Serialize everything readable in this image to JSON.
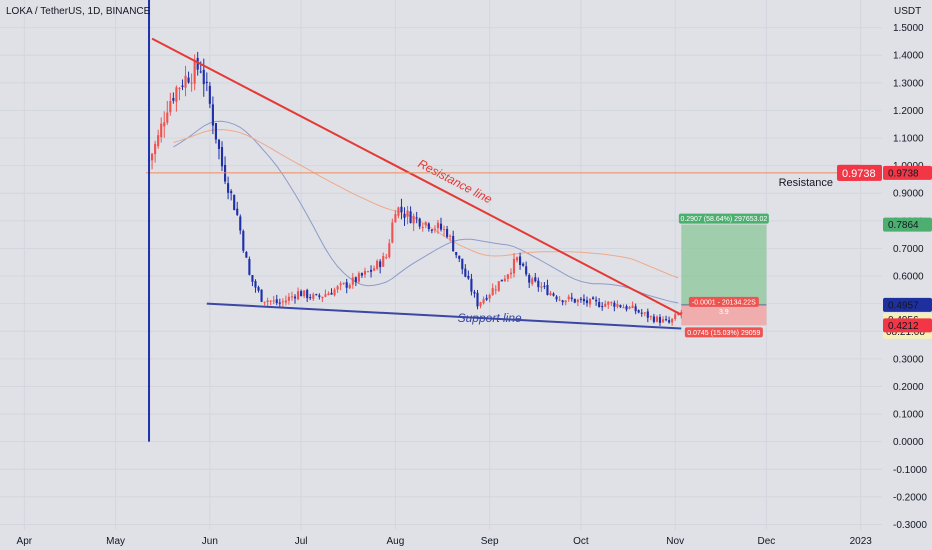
{
  "header": {
    "title": "LOKA / TetherUS, 1D, BINANCE"
  },
  "price_axis": {
    "unit": "USDT"
  },
  "colors": {
    "background": "#dfe1e7",
    "up": "#ef5350",
    "down": "#1e2fa8",
    "resistance_trend": "#e53935",
    "support_trend": "#3a47a3",
    "resistance_level": "#f08a5d",
    "target_zone": "#8bc598",
    "stop_zone": "#f2a3a3",
    "ma_fast": "#8f9bc9",
    "ma_slow": "#f0a98a"
  },
  "chart_data": {
    "type": "candlestick",
    "title": "LOKA / TetherUS, 1D, BINANCE",
    "ylabel": "USDT",
    "ylim": [
      -0.32,
      1.6
    ],
    "y_ticks": [
      "1.5000",
      "1.4000",
      "1.3000",
      "1.2000",
      "1.1000",
      "1.0000",
      "0.9000",
      "0.8000",
      "0.7000",
      "0.6000",
      "0.5000",
      "0.4000",
      "0.3000",
      "0.2000",
      "0.1000",
      "0.0000",
      "-0.1000",
      "-0.2000",
      "-0.3000"
    ],
    "x_ticks": [
      "Apr",
      "May",
      "Jun",
      "Jul",
      "Aug",
      "Sep",
      "Oct",
      "Nov",
      "Dec",
      "2023"
    ],
    "x_tick_dates": [
      "2022-04-01",
      "2022-05-01",
      "2022-06-01",
      "2022-07-01",
      "2022-08-01",
      "2022-09-01",
      "2022-10-01",
      "2022-11-01",
      "2022-12-01",
      "2023-01-01"
    ],
    "price_path": {
      "dates": [
        "2022-05-12",
        "2022-05-15",
        "2022-05-18",
        "2022-05-21",
        "2022-05-25",
        "2022-05-29",
        "2022-06-01",
        "2022-06-05",
        "2022-06-10",
        "2022-06-14",
        "2022-06-18",
        "2022-06-24",
        "2022-06-30",
        "2022-07-06",
        "2022-07-12",
        "2022-07-18",
        "2022-07-24",
        "2022-07-29",
        "2022-08-01",
        "2022-08-05",
        "2022-08-12",
        "2022-08-18",
        "2022-08-24",
        "2022-08-28",
        "2022-09-01",
        "2022-09-06",
        "2022-09-10",
        "2022-09-14",
        "2022-09-18",
        "2022-09-24",
        "2022-09-30",
        "2022-10-06",
        "2022-10-12",
        "2022-10-18",
        "2022-10-24",
        "2022-10-30",
        "2022-11-03"
      ],
      "close": [
        1.02,
        1.1,
        1.22,
        1.28,
        1.33,
        1.36,
        1.22,
        1.0,
        0.82,
        0.6,
        0.52,
        0.5,
        0.54,
        0.52,
        0.55,
        0.58,
        0.62,
        0.67,
        0.85,
        0.82,
        0.79,
        0.76,
        0.6,
        0.5,
        0.54,
        0.6,
        0.66,
        0.58,
        0.56,
        0.52,
        0.51,
        0.5,
        0.5,
        0.48,
        0.45,
        0.43,
        0.47
      ]
    },
    "resistance_trendline": {
      "label": "Resistance line",
      "from": [
        "2022-05-13",
        1.46
      ],
      "to": [
        "2022-11-03",
        0.46
      ]
    },
    "support_trendline": {
      "label": "Support line",
      "from": [
        "2022-05-31",
        0.5
      ],
      "to": [
        "2022-11-03",
        0.41
      ]
    },
    "resistance_level": {
      "label": "Resistance",
      "price": 0.9738,
      "price_label": "0.9738"
    },
    "position": {
      "entry": 0.4957,
      "target": 0.7864,
      "stop": 0.4212,
      "start": "2022-11-03",
      "end": "2022-12-01",
      "target_label": "0.2907 (58.64%) 297653.02",
      "entry_label_1": "-0.0001 - 20134.22S",
      "entry_label_2": "3.9",
      "stop_label": "0.0745 (15.03%) 29059"
    },
    "current": {
      "price": "0.4956",
      "countdown": "08:21:08"
    },
    "axis_labels": {
      "target": "0.7864",
      "entry": "0.4957",
      "stop": "0.4212"
    }
  }
}
